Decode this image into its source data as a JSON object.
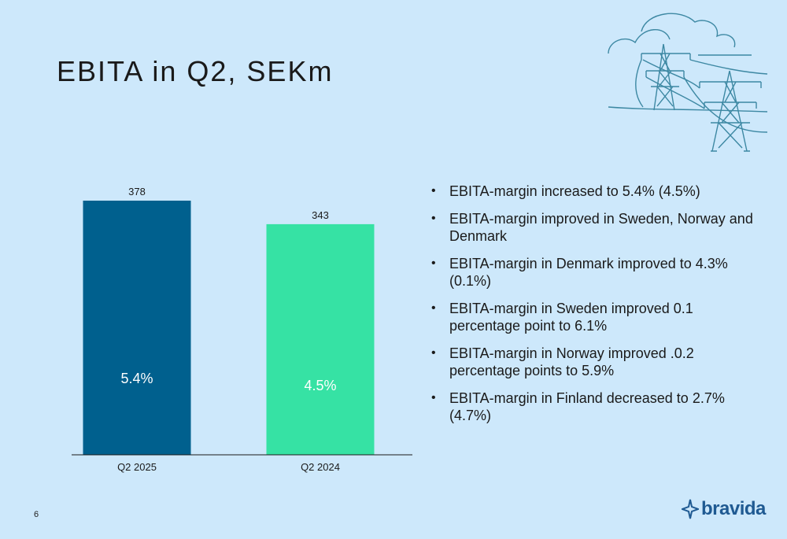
{
  "slide": {
    "title": "EBITA in Q2, SEKm",
    "page_number": "6",
    "logo_text": "bravida",
    "bullets": [
      "EBITA-margin increased to 5.4% (4.5%)",
      "EBITA-margin improved in Sweden, Norway and Denmark",
      "EBITA-margin in Denmark improved to 4.3% (0.1%)",
      "EBITA-margin in Sweden improved 0.1 percentage point to 6.1%",
      "EBITA-margin in Norway improved .0.2 percentage points to 5.9%",
      "EBITA-margin in Finland decreased to 2.7% (4.7%)"
    ],
    "decoration_icon": "power-line-pylons-clouds-icon"
  },
  "chart_data": {
    "type": "bar",
    "title": "",
    "xlabel": "",
    "ylabel": "",
    "categories": [
      "Q2 2025",
      "Q2 2024"
    ],
    "values": [
      378,
      343
    ],
    "value_labels": [
      "378",
      "343"
    ],
    "inner_labels": [
      "5.4%",
      "4.5%"
    ],
    "colors": [
      "#00608e",
      "#36e2a4"
    ],
    "ylim": [
      0,
      378
    ],
    "grid": false,
    "legend": "none"
  }
}
